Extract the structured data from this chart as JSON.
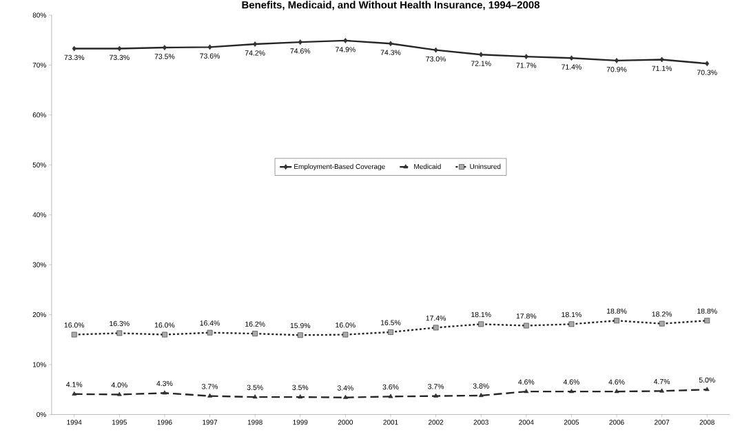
{
  "chart_data": {
    "type": "line",
    "title": "Benefits, Medicaid, and Without Health Insurance, 1994–2008",
    "categories": [
      "1994",
      "1995",
      "1996",
      "1997",
      "1998",
      "1999",
      "2000",
      "2001",
      "2002",
      "2003",
      "2004",
      "2005",
      "2006",
      "2007",
      "2008"
    ],
    "series": [
      {
        "name": "Employment-Based Coverage",
        "color": "#333333",
        "marker": "diamond",
        "line_style": "solid",
        "values": [
          73.3,
          73.3,
          73.5,
          73.6,
          74.2,
          74.6,
          74.9,
          74.3,
          73.0,
          72.1,
          71.7,
          71.4,
          70.9,
          71.1,
          70.3
        ],
        "value_labels": [
          "73.3%",
          "73.3%",
          "73.5%",
          "73.6%",
          "74.2%",
          "74.6%",
          "74.9%",
          "74.3%",
          "73.0%",
          "72.1%",
          "71.7%",
          "71.4%",
          "70.9%",
          "71.1%",
          "70.3%"
        ]
      },
      {
        "name": "Medicaid",
        "color": "#333333",
        "marker": "triangle",
        "line_style": "dashed",
        "values": [
          4.1,
          4.0,
          4.3,
          3.7,
          3.5,
          3.5,
          3.4,
          3.6,
          3.7,
          3.8,
          4.6,
          4.6,
          4.6,
          4.7,
          5.0
        ],
        "value_labels": [
          "4.1%",
          "4.0%",
          "4.3%",
          "3.7%",
          "3.5%",
          "3.5%",
          "3.4%",
          "3.6%",
          "3.7%",
          "3.8%",
          "4.6%",
          "4.6%",
          "4.6%",
          "4.7%",
          "5.0%"
        ]
      },
      {
        "name": "Uninsured",
        "color": "#aaaaaa",
        "marker": "square",
        "line_style": "dotted",
        "values": [
          16.0,
          16.3,
          16.0,
          16.4,
          16.2,
          15.9,
          16.0,
          16.5,
          17.4,
          18.1,
          17.8,
          18.1,
          18.8,
          18.2,
          18.8
        ],
        "value_labels": [
          "16.0%",
          "16.3%",
          "16.0%",
          "16.4%",
          "16.2%",
          "15.9%",
          "16.0%",
          "16.5%",
          "17.4%",
          "18.1%",
          "17.8%",
          "18.1%",
          "18.8%",
          "18.2%",
          "18.8%"
        ]
      }
    ],
    "ylim": [
      0,
      80
    ],
    "yticks": [
      {
        "value": 0,
        "label": "0%"
      },
      {
        "value": 10,
        "label": "10%"
      },
      {
        "value": 20,
        "label": "20%"
      },
      {
        "value": 30,
        "label": "30%"
      },
      {
        "value": 40,
        "label": "40%"
      },
      {
        "value": 50,
        "label": "50%"
      },
      {
        "value": 60,
        "label": "60%"
      },
      {
        "value": 70,
        "label": "70%"
      },
      {
        "value": 80,
        "label": "80%"
      }
    ],
    "grid": false,
    "legend": "center"
  }
}
